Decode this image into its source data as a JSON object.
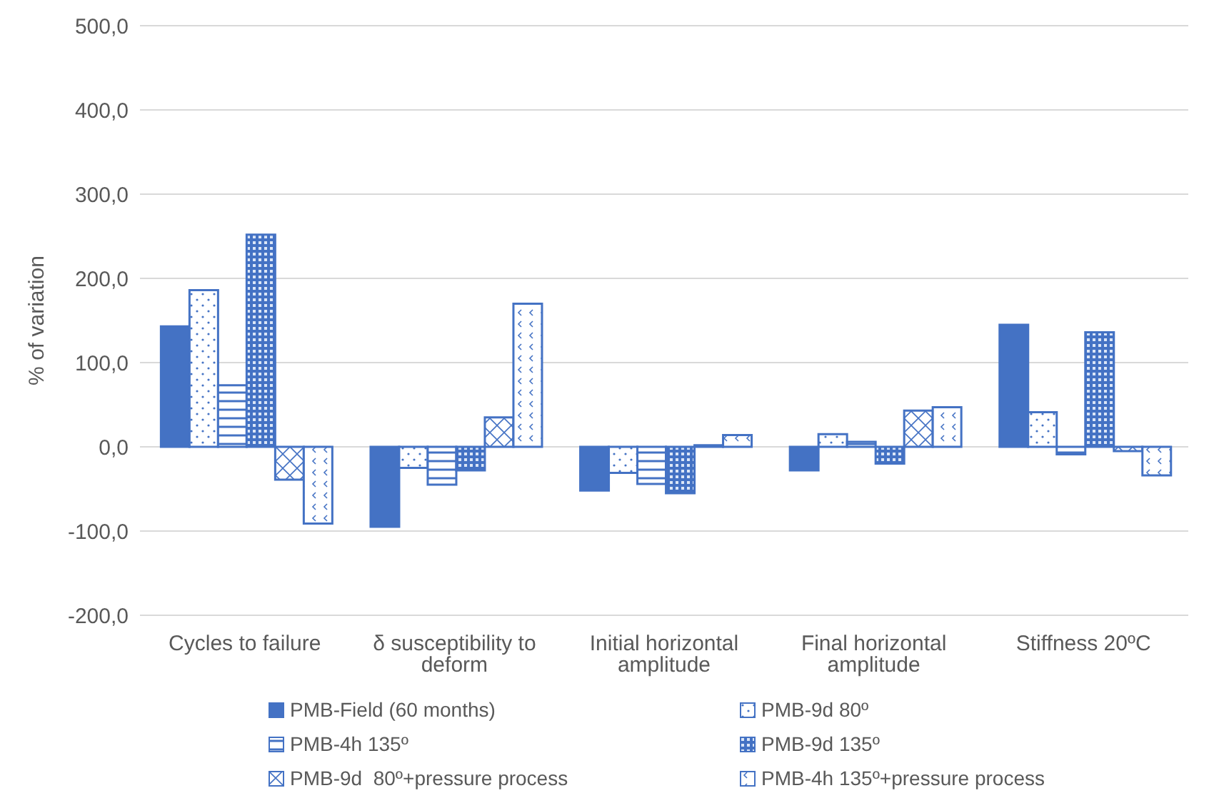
{
  "chart_data": {
    "type": "bar",
    "ylabel": "% of variation",
    "categories": [
      "Cycles to failure",
      "δ susceptibility to deform",
      "Initial horizontal amplitude",
      "Final horizontal amplitude",
      "Stiffness 20ºC"
    ],
    "series": [
      {
        "name": "PMB-Field (60 months)",
        "color": "#4472c4",
        "values": [
          143,
          -95,
          -52,
          -28,
          145
        ]
      },
      {
        "name": "PMB-9d 80º",
        "color": "#4472c4",
        "values": [
          186,
          -25,
          -31,
          15,
          41
        ]
      },
      {
        "name": "PMB-4h 135º",
        "color": "#4472c4",
        "values": [
          73,
          -45,
          -44,
          6,
          -9
        ]
      },
      {
        "name": "PMB-9d 135º",
        "color": "#4472c4",
        "values": [
          252,
          -28,
          -55,
          -20,
          136
        ]
      },
      {
        "name": "PMB-9d  80º+pressure process",
        "color": "#4472c4",
        "values": [
          -39,
          35,
          2,
          43,
          -5
        ]
      },
      {
        "name": "PMB-4h 135º+pressure process",
        "color": "#4472c4",
        "values": [
          -91,
          170,
          14,
          47,
          -34
        ]
      }
    ],
    "ylim": [
      -200,
      500
    ],
    "yticks": [
      {
        "value": -200,
        "label": "-200,0"
      },
      {
        "value": -100,
        "label": "-100,0"
      },
      {
        "value": 0,
        "label": "0,0"
      },
      {
        "value": 100,
        "label": "100,0"
      },
      {
        "value": 200,
        "label": "200,0"
      },
      {
        "value": 300,
        "label": "300,0"
      },
      {
        "value": 400,
        "label": "400,0"
      },
      {
        "value": 500,
        "label": "500,0"
      }
    ],
    "grid": "y",
    "legend": "bottom"
  }
}
